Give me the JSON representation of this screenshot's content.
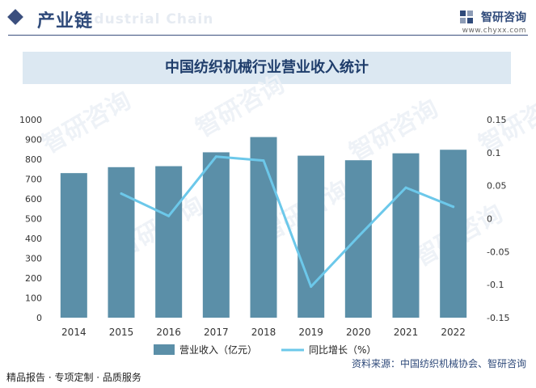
{
  "header": {
    "section_title": "产业链",
    "watermark_text": "Industrial Chain",
    "brand_name": "智研咨询",
    "brand_url": "www.chyxx.com"
  },
  "footer": {
    "left_text": "精品报告 · 专项定制 · 品质服务",
    "source_text": "资料来源：中国纺织机械协会、智研咨询"
  },
  "colors": {
    "bar": "#5b8fa8",
    "line": "#6cc8ea",
    "accent": "#2f4a7a",
    "title_band": "#dce8f2"
  },
  "chart_data": {
    "type": "bar",
    "title": "中国纺织机械行业营业收入统计",
    "categories": [
      "2014",
      "2015",
      "2016",
      "2017",
      "2018",
      "2019",
      "2020",
      "2021",
      "2022"
    ],
    "series": [
      {
        "name": "营业收入（亿元）",
        "type": "bar",
        "axis": "left",
        "values": [
          730,
          760,
          765,
          835,
          912,
          818,
          795,
          830,
          848
        ]
      },
      {
        "name": "同比增长（%）",
        "type": "line",
        "axis": "right",
        "values": [
          null,
          0.038,
          0.004,
          0.094,
          0.088,
          -0.103,
          -0.027,
          0.047,
          0.018
        ]
      }
    ],
    "ylim_left": [
      0,
      1000
    ],
    "yticks_left": [
      "0",
      "100",
      "200",
      "300",
      "400",
      "500",
      "600",
      "700",
      "800",
      "900",
      "1000"
    ],
    "ylim_right": [
      -0.15,
      0.15
    ],
    "yticks_right": [
      "-0.15",
      "-0.1",
      "-0.05",
      "0",
      "0.05",
      "0.1",
      "0.15"
    ],
    "grid": false,
    "legend_position": "bottom"
  }
}
